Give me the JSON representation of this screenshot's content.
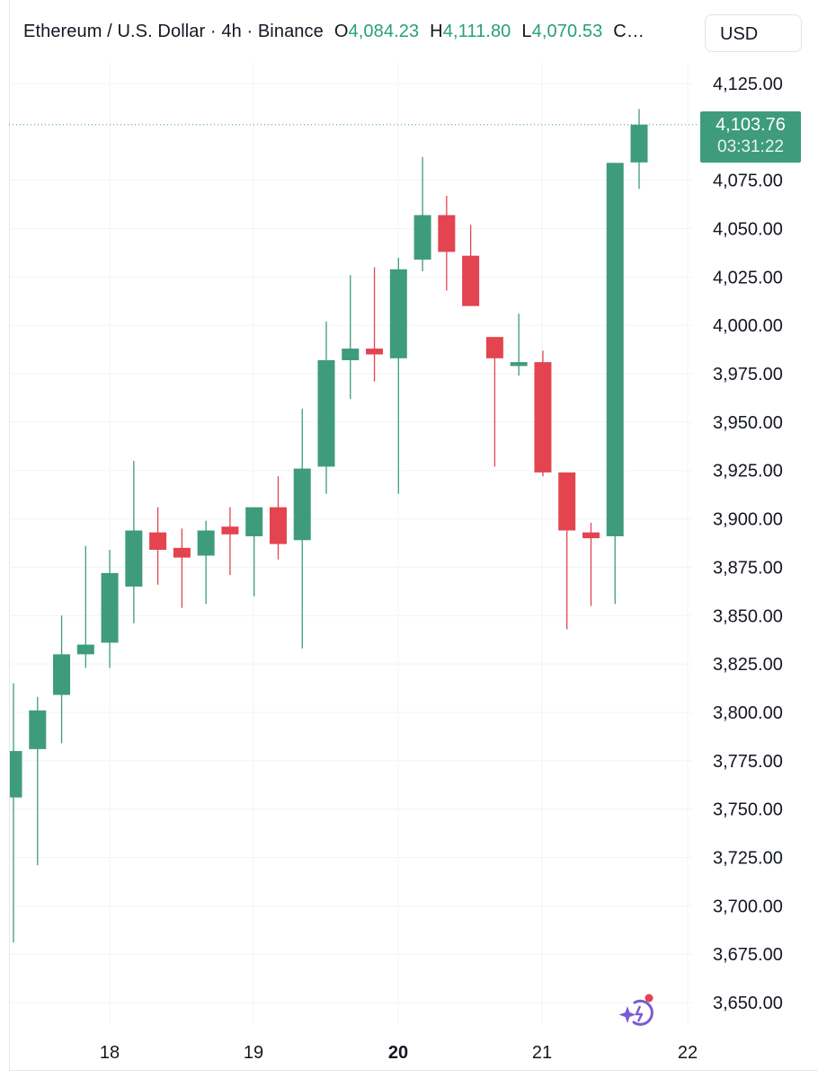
{
  "legend": {
    "title": "Ethereum / U.S. Dollar · 4h · Binance",
    "open_label": "O",
    "open_value": "4,084.23",
    "high_label": "H",
    "high_value": "4,111.80",
    "low_label": "L",
    "low_value": "4,070.53",
    "close_label": "C…"
  },
  "currency_button": "USD",
  "price_badge": {
    "price": "4,103.76",
    "countdown": "03:31:22"
  },
  "colors": {
    "up": "#3e9c7d",
    "down": "#e3444f",
    "badge": "#3e9c7d",
    "grid": "#f0f3fa"
  },
  "icons": {
    "assistant": "sparkle-assistant-icon"
  },
  "chart_data": {
    "type": "candlestick",
    "title": "Ethereum / U.S. Dollar · 4h · Binance",
    "interval": "4h",
    "ylim": [
      3640,
      4140
    ],
    "y_ticks": [
      "4,125.00",
      "4,075.00",
      "4,050.00",
      "4,025.00",
      "4,000.00",
      "3,975.00",
      "3,950.00",
      "3,925.00",
      "3,900.00",
      "3,875.00",
      "3,850.00",
      "3,825.00",
      "3,800.00",
      "3,775.00",
      "3,750.00",
      "3,725.00",
      "3,700.00",
      "3,675.00",
      "3,650.00"
    ],
    "x_ticks": [
      {
        "label": "18",
        "bold": false
      },
      {
        "label": "19",
        "bold": false
      },
      {
        "label": "20",
        "bold": true
      },
      {
        "label": "21",
        "bold": false
      },
      {
        "label": "22",
        "bold": false
      }
    ],
    "last_price": 4103.76,
    "candles": [
      {
        "o": 3756,
        "h": 3815,
        "l": 3681,
        "c": 3780
      },
      {
        "o": 3781,
        "h": 3808,
        "l": 3721,
        "c": 3801
      },
      {
        "o": 3809,
        "h": 3850,
        "l": 3784,
        "c": 3830
      },
      {
        "o": 3830,
        "h": 3886,
        "l": 3823,
        "c": 3835
      },
      {
        "o": 3836,
        "h": 3884,
        "l": 3823,
        "c": 3872
      },
      {
        "o": 3865,
        "h": 3930,
        "l": 3846,
        "c": 3894
      },
      {
        "o": 3893,
        "h": 3906,
        "l": 3866,
        "c": 3884
      },
      {
        "o": 3885,
        "h": 3895,
        "l": 3854,
        "c": 3880
      },
      {
        "o": 3881,
        "h": 3899,
        "l": 3856,
        "c": 3894
      },
      {
        "o": 3896,
        "h": 3906,
        "l": 3871,
        "c": 3892
      },
      {
        "o": 3891,
        "h": 3906,
        "l": 3860,
        "c": 3906
      },
      {
        "o": 3906,
        "h": 3922,
        "l": 3879,
        "c": 3887
      },
      {
        "o": 3889,
        "h": 3957,
        "l": 3833,
        "c": 3926
      },
      {
        "o": 3927,
        "h": 4002,
        "l": 3913,
        "c": 3982
      },
      {
        "o": 3982,
        "h": 4026,
        "l": 3962,
        "c": 3988
      },
      {
        "o": 3988,
        "h": 4030,
        "l": 3971,
        "c": 3985
      },
      {
        "o": 3983,
        "h": 4035,
        "l": 3913,
        "c": 4029
      },
      {
        "o": 4034,
        "h": 4087,
        "l": 4028,
        "c": 4057
      },
      {
        "o": 4057,
        "h": 4067,
        "l": 4018,
        "c": 4038
      },
      {
        "o": 4036,
        "h": 4052,
        "l": 4010,
        "c": 4010
      },
      {
        "o": 3994,
        "h": 3994,
        "l": 3927,
        "c": 3983
      },
      {
        "o": 3979,
        "h": 4006,
        "l": 3974,
        "c": 3981
      },
      {
        "o": 3981,
        "h": 3987,
        "l": 3922,
        "c": 3924
      },
      {
        "o": 3924,
        "h": 3924,
        "l": 3843,
        "c": 3894
      },
      {
        "o": 3893,
        "h": 3898,
        "l": 3855,
        "c": 3890
      },
      {
        "o": 3891,
        "h": 4084,
        "l": 3856,
        "c": 4084
      },
      {
        "o": 4084.23,
        "h": 4111.8,
        "l": 4070.53,
        "c": 4103.76
      }
    ]
  }
}
